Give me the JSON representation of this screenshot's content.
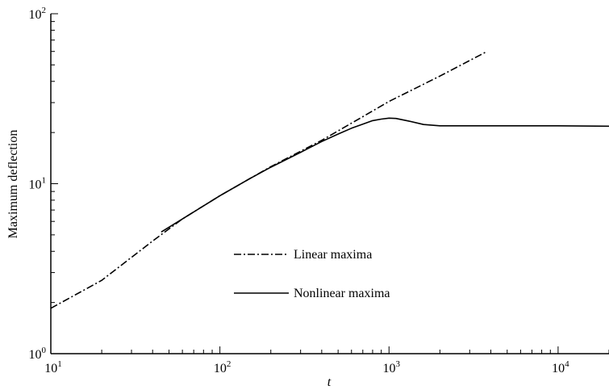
{
  "chart_data": {
    "type": "line",
    "xscale": "log",
    "yscale": "log",
    "xlim": [
      10,
      20000
    ],
    "ylim": [
      1,
      100
    ],
    "xlabel": "t",
    "ylabel": "Maximum deflection",
    "x_ticks": [
      {
        "value": 10,
        "base": "10",
        "exp": "1"
      },
      {
        "value": 100,
        "base": "10",
        "exp": "2"
      },
      {
        "value": 1000,
        "base": "10",
        "exp": "3"
      },
      {
        "value": 10000,
        "base": "10",
        "exp": "4"
      }
    ],
    "y_ticks": [
      {
        "value": 1,
        "base": "10",
        "exp": "0"
      },
      {
        "value": 10,
        "base": "10",
        "exp": "1"
      },
      {
        "value": 100,
        "base": "10",
        "exp": "2"
      }
    ],
    "grid": false,
    "legend_position": "center",
    "series": [
      {
        "name": "Linear maxima",
        "style": "dashdot",
        "x": [
          10,
          20,
          40,
          60,
          100,
          200,
          400,
          700,
          1000,
          2000,
          3800
        ],
        "y": [
          1.85,
          2.7,
          4.6,
          6.2,
          8.5,
          12.6,
          18.0,
          24.8,
          30.5,
          43.0,
          60.0
        ]
      },
      {
        "name": "Nonlinear maxima",
        "style": "solid",
        "x": [
          45,
          60,
          80,
          100,
          150,
          200,
          300,
          400,
          500,
          600,
          700,
          800,
          900,
          1000,
          1100,
          1300,
          1600,
          2000,
          3000,
          5000,
          10000,
          20000
        ],
        "y": [
          5.2,
          6.2,
          7.4,
          8.5,
          10.7,
          12.5,
          15.3,
          17.7,
          19.6,
          21.2,
          22.4,
          23.5,
          24.0,
          24.3,
          24.2,
          23.4,
          22.3,
          21.9,
          21.9,
          21.9,
          21.9,
          21.8
        ]
      }
    ]
  }
}
